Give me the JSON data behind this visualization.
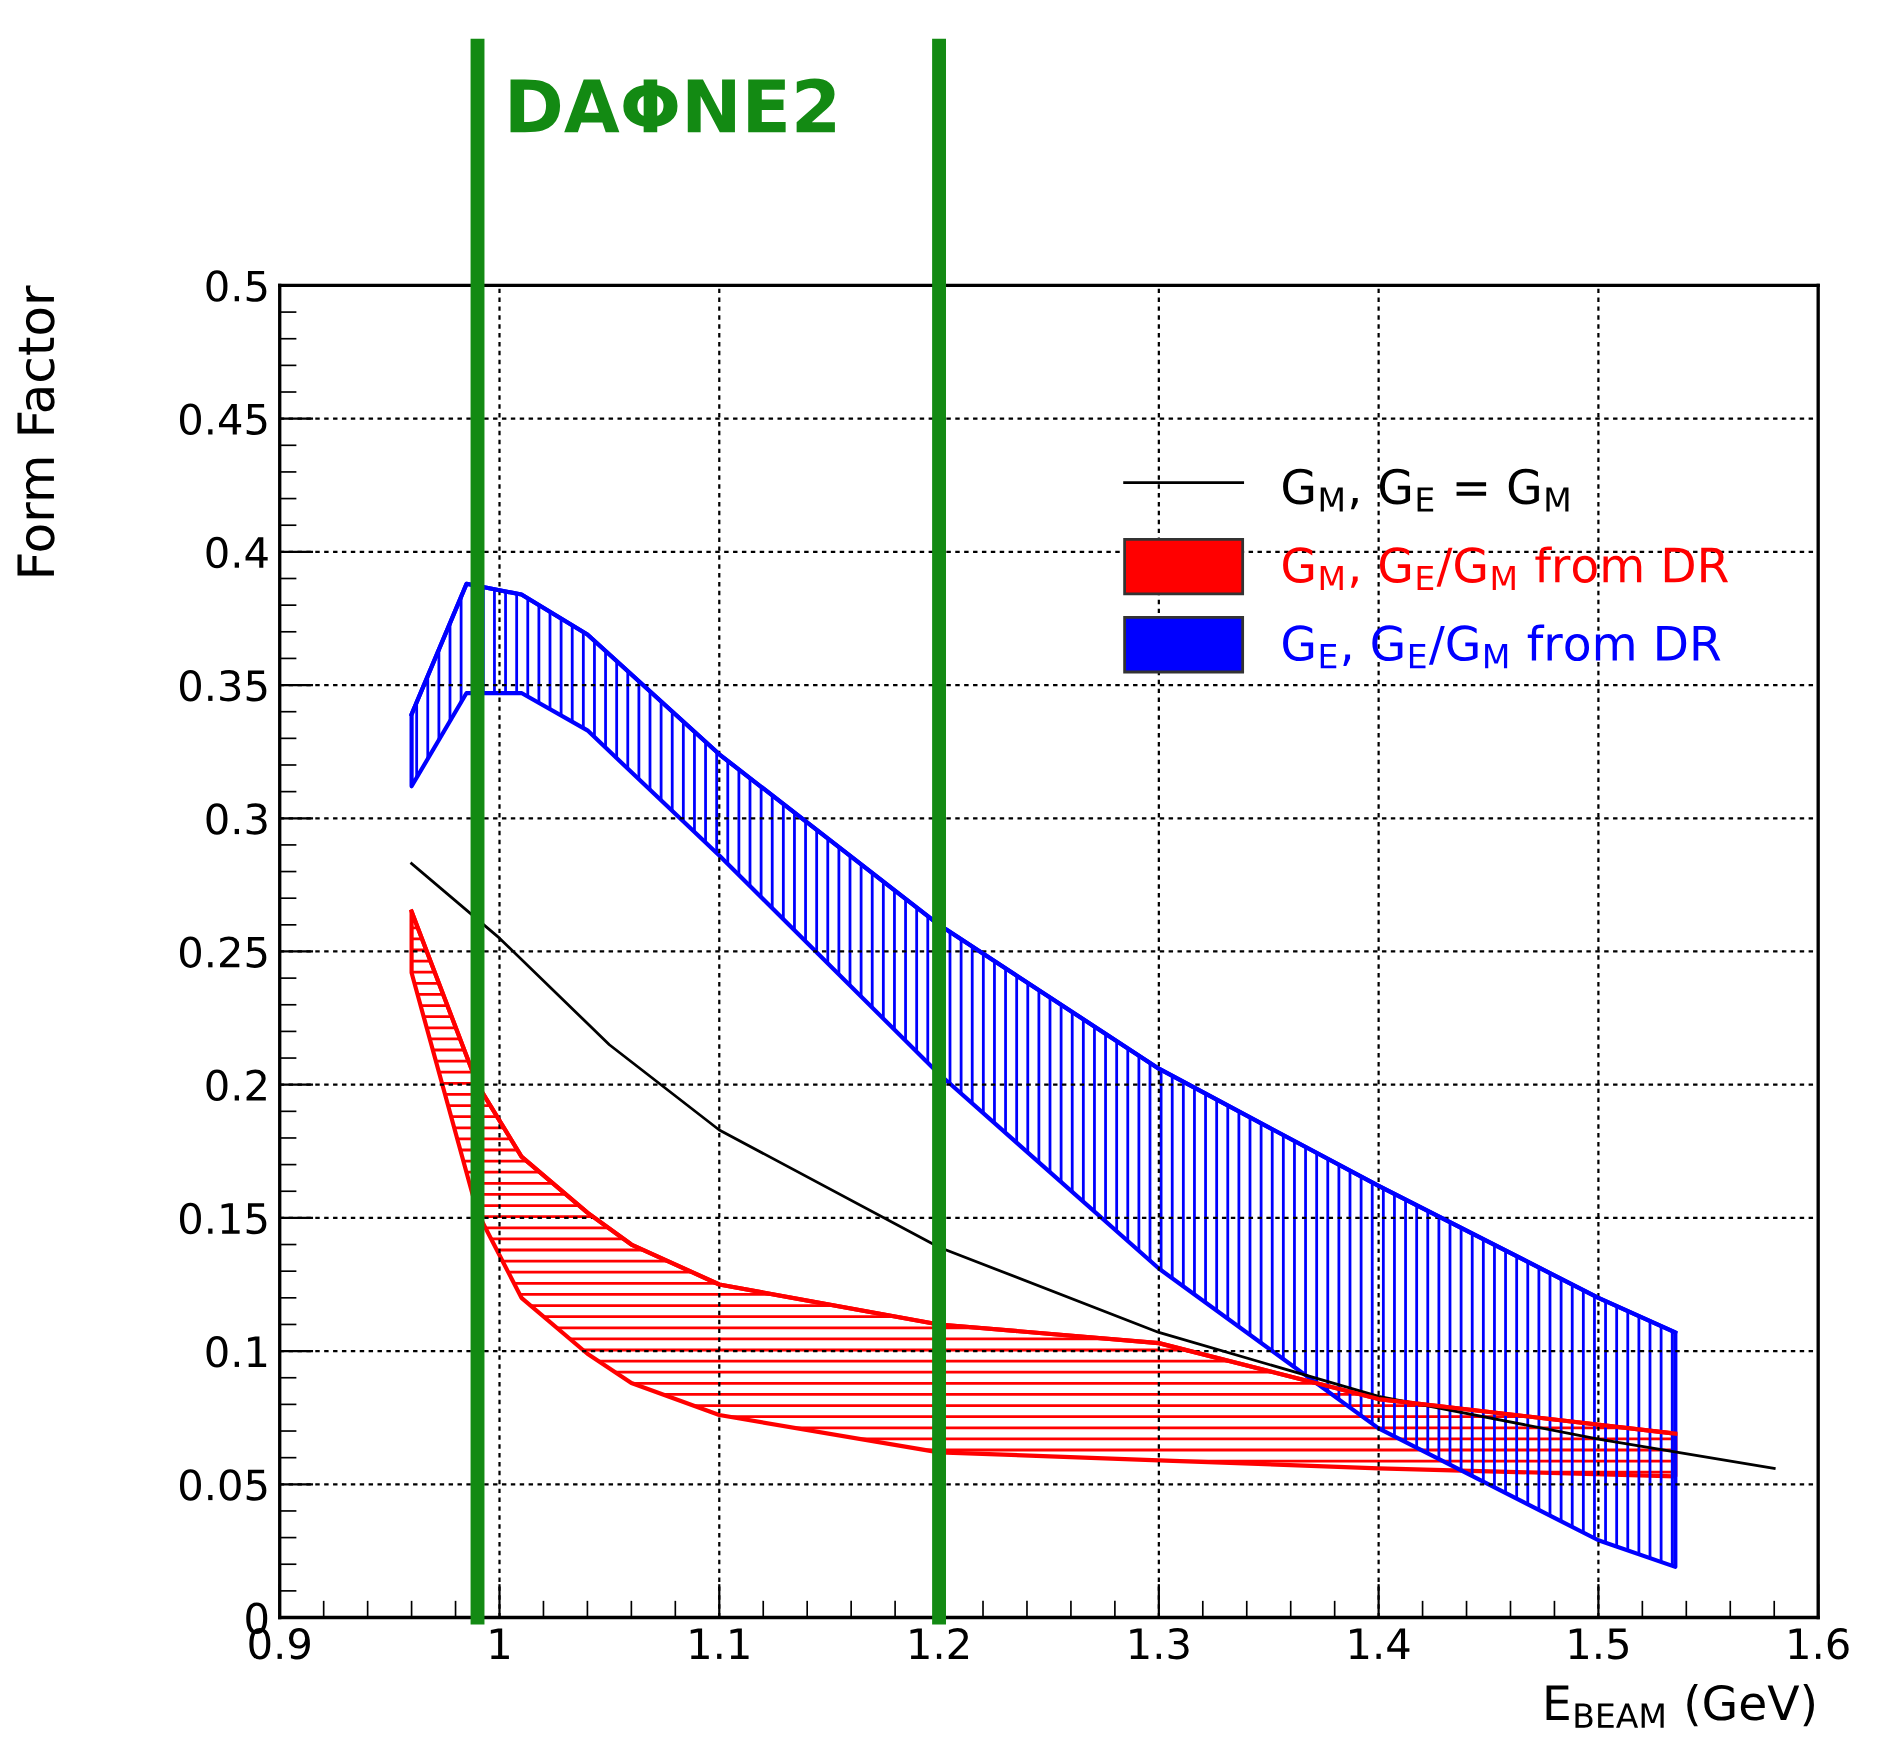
{
  "chart_data": {
    "type": "line",
    "ylabel": "Form Factor",
    "xlabel": "E$_{BEAM}$ (GeV)",
    "xlim": [
      0.9,
      1.6
    ],
    "xticks": [
      0.9,
      1,
      1.1,
      1.2,
      1.3,
      1.4,
      1.5,
      1.6
    ],
    "ylim": [
      0,
      0.5
    ],
    "yticks": [
      0,
      0.05,
      0.1,
      0.15,
      0.2,
      0.25,
      0.3,
      0.35,
      0.4,
      0.45,
      0.5
    ],
    "grid": true,
    "legend": "top right",
    "series": [
      {
        "name": "G$_{M}$, G$_{E}$ = G$_{M}$",
        "color": "#000000",
        "x": [
          0.96,
          1.0,
          1.05,
          1.1,
          1.2,
          1.3,
          1.4,
          1.5,
          1.58
        ],
        "values": [
          0.283,
          0.255,
          0.215,
          0.183,
          0.139,
          0.107,
          0.083,
          0.067,
          0.056
        ]
      },
      {
        "name": "G$_{M}$, G$_{E}$/G$_{M}$ from DR",
        "type": "line",
        "color": "#ff0000",
        "x": [
          0.96,
          0.99,
          1.01,
          1.04,
          1.06,
          1.1,
          1.2,
          1.3,
          1.4,
          1.535
        ],
        "values": [
          0.265,
          0.2,
          0.173,
          0.152,
          0.14,
          0.125,
          0.11,
          0.103,
          0.082,
          0.069
        ],
        "lower": [
          0.242,
          0.152,
          0.12,
          0.099,
          0.088,
          0.076,
          0.062,
          0.059,
          0.056,
          0.053
        ],
        "upper": [
          0.265,
          0.2,
          0.173,
          0.152,
          0.14,
          0.125,
          0.11,
          0.103,
          0.082,
          0.069
        ]
      },
      {
        "name": "G$_{E}$, G$_{E}$/G$_{M}$ from DR",
        "type": "line",
        "color": "#0000ff",
        "x": [
          0.96,
          0.985,
          1.01,
          1.04,
          1.1,
          1.2,
          1.3,
          1.4,
          1.5,
          1.535
        ],
        "values": [
          0.339,
          0.388,
          0.384,
          0.369,
          0.324,
          0.26,
          0.206,
          0.162,
          0.12,
          0.107
        ],
        "lower": [
          0.312,
          0.347,
          0.347,
          0.333,
          0.286,
          0.204,
          0.131,
          0.071,
          0.029,
          0.019
        ],
        "upper": [
          0.339,
          0.388,
          0.384,
          0.369,
          0.324,
          0.26,
          0.206,
          0.162,
          0.12,
          0.107
        ]
      }
    ],
    "ref_lines": [
      {
        "axis": "x",
        "value": 0.99,
        "label": "DAΦNE2",
        "color": "#138a13"
      },
      {
        "axis": "x",
        "value": 1.2,
        "color": "#138a13"
      }
    ]
  }
}
